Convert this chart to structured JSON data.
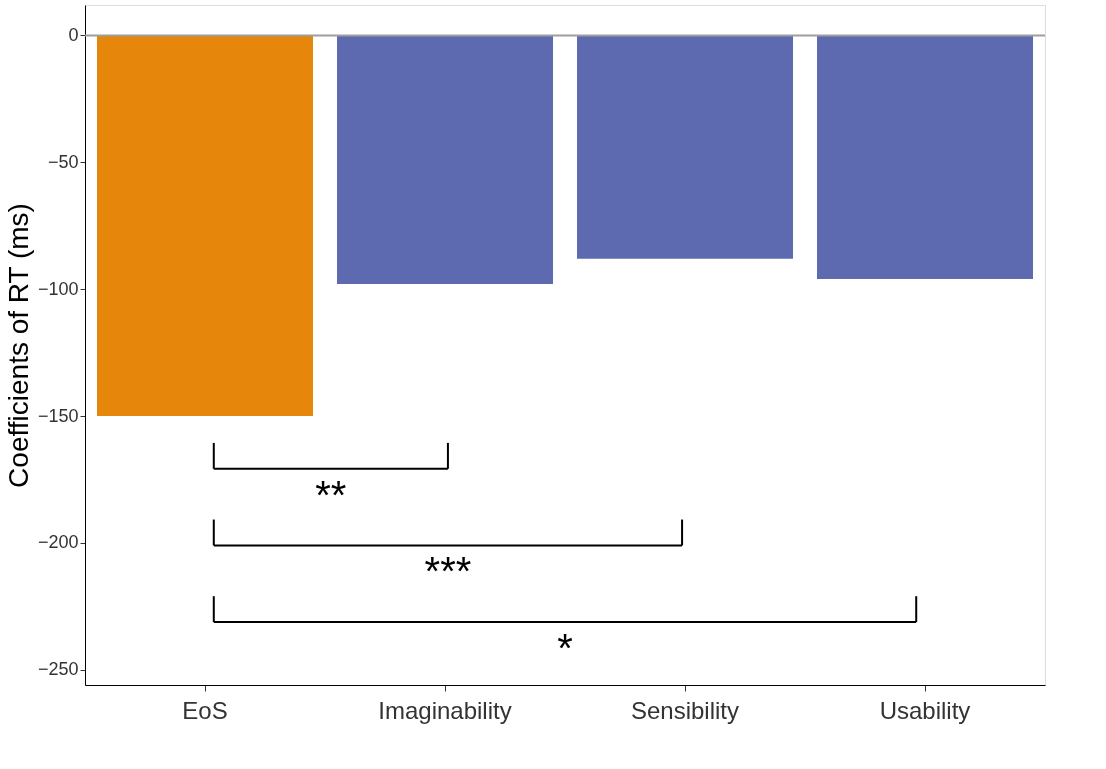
{
  "chart_data": {
    "type": "bar",
    "ylabel": "Coefficients of RT (ms)",
    "categories": [
      "EoS",
      "Imaginability",
      "Sensibility",
      "Usability"
    ],
    "values": [
      -150,
      -98,
      -88,
      -96
    ],
    "colors": [
      "#e6860a",
      "#5d6ab0",
      "#5d6ab0",
      "#5d6ab0"
    ],
    "ylim": [
      -256,
      12
    ],
    "yticks": [
      0,
      {
        "value": -50,
        "label": "−50"
      },
      {
        "value": -100,
        "label": "−100"
      },
      {
        "value": -150,
        "label": "−150"
      },
      {
        "value": -200,
        "label": "−200"
      },
      {
        "value": -250,
        "label": "−250"
      }
    ],
    "ref_lines": [
      {
        "axis": "y",
        "value": 0,
        "color": "#9e9e9e"
      }
    ],
    "annotations": [
      "**",
      "***",
      "*"
    ],
    "grid": false
  }
}
